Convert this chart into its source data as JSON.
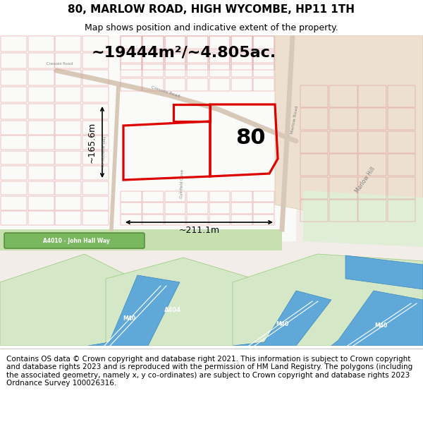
{
  "title_line1": "80, MARLOW ROAD, HIGH WYCOMBE, HP11 1TH",
  "title_line2": "Map shows position and indicative extent of the property.",
  "area_label": "~19444m²/~4.805ac.",
  "label_80": "80",
  "dim_vertical": "~165.6m",
  "dim_horizontal": "~211.1m",
  "footer_text": "Contains OS data © Crown copyright and database right 2021. This information is subject to Crown copyright and database rights 2023 and is reproduced with the permission of HM Land Registry. The polygons (including the associated geometry, namely x, y co-ordinates) are subject to Crown copyright and database rights 2023 Ordnance Survey 100026316.",
  "bg_color": "#f2ede8",
  "residential_color": "#fafaf8",
  "green_color": "#d4e8c8",
  "blue_color": "#60a8d8",
  "red_poly_color": "#dd0000",
  "road_green_bg": "#7ab860",
  "dim_fontsize": 9,
  "area_fontsize": 16,
  "label_fontsize": 22,
  "title_fontsize": 11,
  "subtitle_fontsize": 9,
  "footer_fontsize": 7.5
}
